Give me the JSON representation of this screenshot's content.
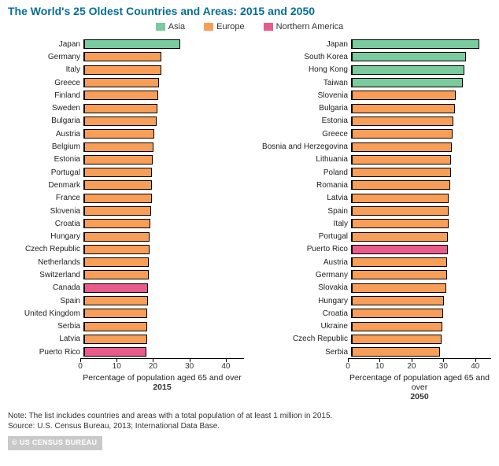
{
  "title": "The World's 25 Oldest Countries and Areas: 2015 and 2050",
  "legend": [
    {
      "label": "Asia",
      "color": "#7acb9e"
    },
    {
      "label": "Europe",
      "color": "#f99e57"
    },
    {
      "label": "Northern America",
      "color": "#e85b8a"
    }
  ],
  "colors": {
    "title": "#046e9a",
    "asia": "#7acb9e",
    "europe": "#f99e57",
    "namerica": "#e85b8a",
    "bar_border": "#000000",
    "axis": "#000000",
    "background": "#ffffff"
  },
  "x_axis": {
    "min": 0,
    "max": 45,
    "ticks": [
      0,
      10,
      20,
      30,
      40
    ],
    "label": "Percentage of population aged 65 and over"
  },
  "layout": {
    "label_width_2015": 92,
    "label_width_2050": 118,
    "plot_width_2015": 208,
    "plot_width_2050": 182,
    "bar_row_height": 16.3,
    "label_fontsize": 10,
    "axis_fontsize": 10,
    "title_fontsize": 14
  },
  "chart_2015": {
    "year": "2015",
    "data": [
      {
        "label": "Japan",
        "value": 26.5,
        "region": "asia"
      },
      {
        "label": "Germany",
        "value": 21.3,
        "region": "europe"
      },
      {
        "label": "Italy",
        "value": 21.1,
        "region": "europe"
      },
      {
        "label": "Greece",
        "value": 20.5,
        "region": "europe"
      },
      {
        "label": "Finland",
        "value": 20.3,
        "region": "europe"
      },
      {
        "label": "Sweden",
        "value": 20.1,
        "region": "europe"
      },
      {
        "label": "Bulgaria",
        "value": 19.8,
        "region": "europe"
      },
      {
        "label": "Austria",
        "value": 19.2,
        "region": "europe"
      },
      {
        "label": "Belgium",
        "value": 19.0,
        "region": "europe"
      },
      {
        "label": "Estonia",
        "value": 18.9,
        "region": "europe"
      },
      {
        "label": "Portugal",
        "value": 18.7,
        "region": "europe"
      },
      {
        "label": "Denmark",
        "value": 18.6,
        "region": "europe"
      },
      {
        "label": "France",
        "value": 18.5,
        "region": "europe"
      },
      {
        "label": "Slovenia",
        "value": 18.3,
        "region": "europe"
      },
      {
        "label": "Croatia",
        "value": 18.1,
        "region": "europe"
      },
      {
        "label": "Hungary",
        "value": 18.0,
        "region": "europe"
      },
      {
        "label": "Czech Republic",
        "value": 17.9,
        "region": "europe"
      },
      {
        "label": "Netherlands",
        "value": 17.8,
        "region": "europe"
      },
      {
        "label": "Switzerland",
        "value": 17.7,
        "region": "europe"
      },
      {
        "label": "Canada",
        "value": 17.6,
        "region": "namerica"
      },
      {
        "label": "Spain",
        "value": 17.5,
        "region": "europe"
      },
      {
        "label": "United Kingdom",
        "value": 17.4,
        "region": "europe"
      },
      {
        "label": "Serbia",
        "value": 17.3,
        "region": "europe"
      },
      {
        "label": "Latvia",
        "value": 17.2,
        "region": "europe"
      },
      {
        "label": "Puerto Rico",
        "value": 17.1,
        "region": "namerica"
      }
    ]
  },
  "chart_2050": {
    "year": "2050",
    "data": [
      {
        "label": "Japan",
        "value": 40.1,
        "region": "asia"
      },
      {
        "label": "South Korea",
        "value": 35.9,
        "region": "asia"
      },
      {
        "label": "Hong Kong",
        "value": 35.3,
        "region": "asia"
      },
      {
        "label": "Taiwan",
        "value": 34.9,
        "region": "asia"
      },
      {
        "label": "Slovenia",
        "value": 32.6,
        "region": "europe"
      },
      {
        "label": "Bulgaria",
        "value": 32.5,
        "region": "europe"
      },
      {
        "label": "Estonia",
        "value": 31.8,
        "region": "europe"
      },
      {
        "label": "Greece",
        "value": 31.7,
        "region": "europe"
      },
      {
        "label": "Bosnia and Herzegovina",
        "value": 31.5,
        "region": "europe"
      },
      {
        "label": "Lithuania",
        "value": 31.2,
        "region": "europe"
      },
      {
        "label": "Poland",
        "value": 31.1,
        "region": "europe"
      },
      {
        "label": "Romania",
        "value": 31.0,
        "region": "europe"
      },
      {
        "label": "Latvia",
        "value": 30.5,
        "region": "europe"
      },
      {
        "label": "Spain",
        "value": 30.4,
        "region": "europe"
      },
      {
        "label": "Italy",
        "value": 30.3,
        "region": "europe"
      },
      {
        "label": "Portugal",
        "value": 30.2,
        "region": "europe"
      },
      {
        "label": "Puerto Rico",
        "value": 30.1,
        "region": "namerica"
      },
      {
        "label": "Austria",
        "value": 30.0,
        "region": "europe"
      },
      {
        "label": "Germany",
        "value": 29.9,
        "region": "europe"
      },
      {
        "label": "Slovakia",
        "value": 29.6,
        "region": "europe"
      },
      {
        "label": "Hungary",
        "value": 29.0,
        "region": "europe"
      },
      {
        "label": "Croatia",
        "value": 28.8,
        "region": "europe"
      },
      {
        "label": "Ukraine",
        "value": 28.5,
        "region": "europe"
      },
      {
        "label": "Czech Republic",
        "value": 28.2,
        "region": "europe"
      },
      {
        "label": "Serbia",
        "value": 27.8,
        "region": "europe"
      }
    ]
  },
  "footer": {
    "note": "Note: The list includes countries and areas with a total population of at least 1 million in 2015.",
    "source": "Source: U.S. Census Bureau, 2013; International Data Base.",
    "badge": "US CENSUS BUREAU"
  }
}
